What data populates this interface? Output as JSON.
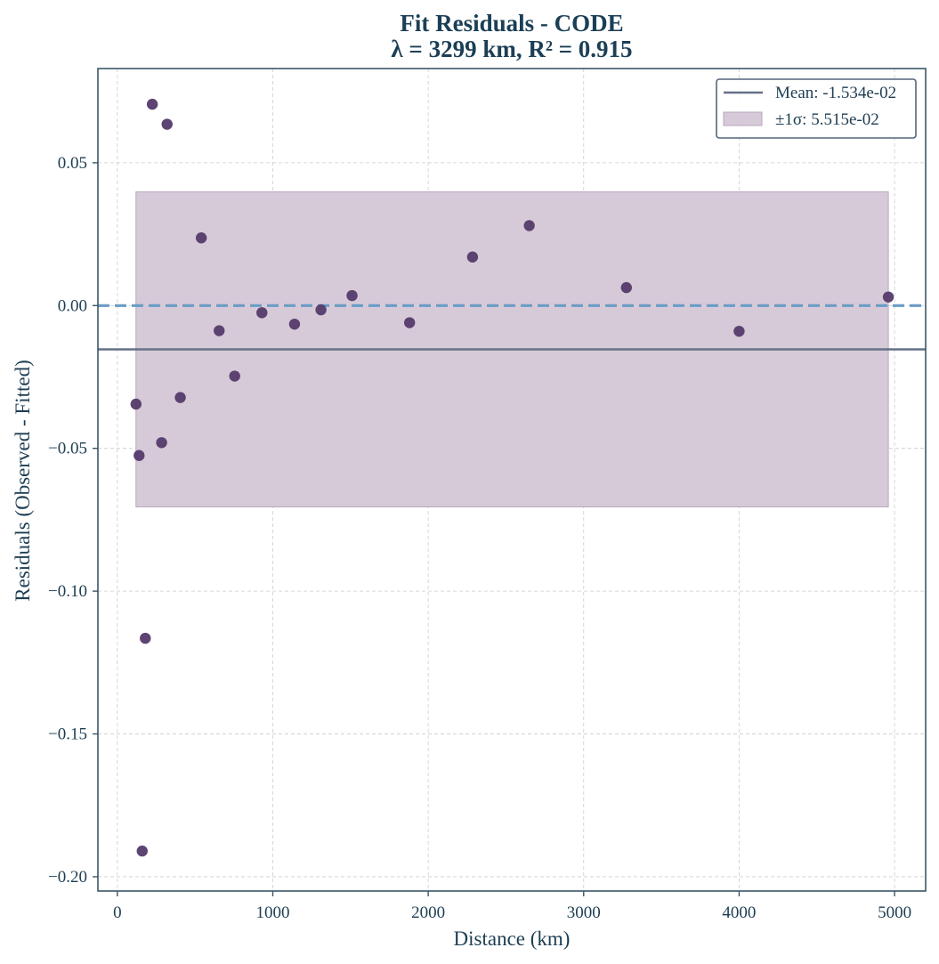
{
  "chart_data": {
    "type": "scatter",
    "title": "Fit Residuals - CODE",
    "subtitle": "λ = 3299 km, R² = 0.915",
    "xlabel": "Distance (km)",
    "ylabel": "Residuals (Observed - Fitted)",
    "xlim": [
      -125,
      5200
    ],
    "ylim": [
      -0.205,
      0.083
    ],
    "xticks": [
      0,
      1000,
      2000,
      3000,
      4000,
      5000
    ],
    "xtick_labels": [
      "0",
      "1000",
      "2000",
      "3000",
      "4000",
      "5000"
    ],
    "yticks": [
      -0.2,
      -0.15,
      -0.1,
      -0.05,
      0.0,
      0.05
    ],
    "ytick_labels": [
      "−0.20",
      "−0.15",
      "−0.10",
      "−0.05",
      "0.00",
      "0.05"
    ],
    "grid": true,
    "legend_position": "top-right",
    "legend": {
      "mean_label": "Mean: -1.534e-02",
      "sigma_label": "±1σ: 5.515e-02"
    },
    "mean": -0.01534,
    "sigma": 0.05515,
    "band_x_range": [
      120,
      4960
    ],
    "zero_line": 0.0,
    "points": [
      {
        "x": 120,
        "y": -0.0345
      },
      {
        "x": 140,
        "y": -0.0525
      },
      {
        "x": 160,
        "y": -0.191
      },
      {
        "x": 180,
        "y": -0.1165
      },
      {
        "x": 225,
        "y": 0.0705
      },
      {
        "x": 285,
        "y": -0.048
      },
      {
        "x": 320,
        "y": 0.0635
      },
      {
        "x": 405,
        "y": -0.0322
      },
      {
        "x": 540,
        "y": 0.0237
      },
      {
        "x": 655,
        "y": -0.0088
      },
      {
        "x": 755,
        "y": -0.0247
      },
      {
        "x": 930,
        "y": -0.0025
      },
      {
        "x": 1140,
        "y": -0.0065
      },
      {
        "x": 1310,
        "y": -0.0015
      },
      {
        "x": 1510,
        "y": 0.0035
      },
      {
        "x": 1880,
        "y": -0.006
      },
      {
        "x": 2285,
        "y": 0.017
      },
      {
        "x": 2650,
        "y": 0.028
      },
      {
        "x": 3275,
        "y": 0.0063
      },
      {
        "x": 4000,
        "y": -0.009
      },
      {
        "x": 4960,
        "y": 0.003
      }
    ],
    "colors": {
      "axis": "#3c5667",
      "text": "#1c3d52",
      "title": "#1b3f56",
      "grid": "#cccccc",
      "point": "#553a6b",
      "band_fill": "#d6cad8",
      "band_edge": "#b9a6bd",
      "mean_line": "#667188",
      "zero_line": "#6a9cc6",
      "legend_edge": "#53657c"
    }
  }
}
